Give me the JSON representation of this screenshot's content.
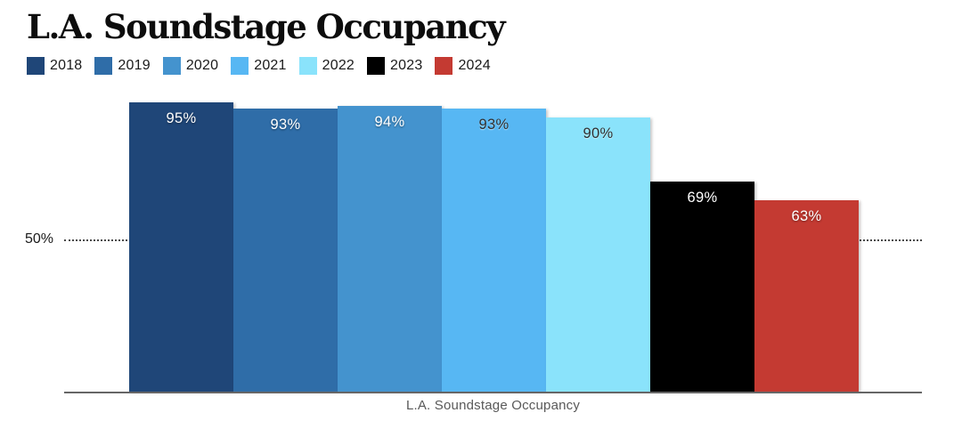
{
  "title": "L.A. Soundstage Occupancy",
  "y_axis": {
    "tick_label": "50%"
  },
  "footer": {
    "x_axis_title": "L.A. Soundstage Occupancy"
  },
  "chart_data": {
    "type": "bar",
    "title": "L.A. Soundstage Occupancy",
    "categories": [
      "2018",
      "2019",
      "2020",
      "2021",
      "2022",
      "2023",
      "2024"
    ],
    "values": [
      95,
      93,
      94,
      93,
      90,
      69,
      63
    ],
    "bar_labels": [
      "95%",
      "93%",
      "94%",
      "93%",
      "90%",
      "69%",
      "63%"
    ],
    "colors": [
      "#1f4678",
      "#2f6da8",
      "#4493ce",
      "#57b7f3",
      "#8ae3fb",
      "#000000",
      "#c43a32"
    ],
    "label_tones": [
      "light",
      "light",
      "light",
      "dark",
      "dark",
      "light",
      "light"
    ],
    "xlabel": "L.A. Soundstage Occupancy",
    "ylabel": "",
    "ylim": [
      0,
      100
    ],
    "gridline": {
      "value": 50,
      "label": "50%"
    },
    "legend_position": "top-left",
    "axis_line_color": "#666666",
    "grid_on": true
  }
}
